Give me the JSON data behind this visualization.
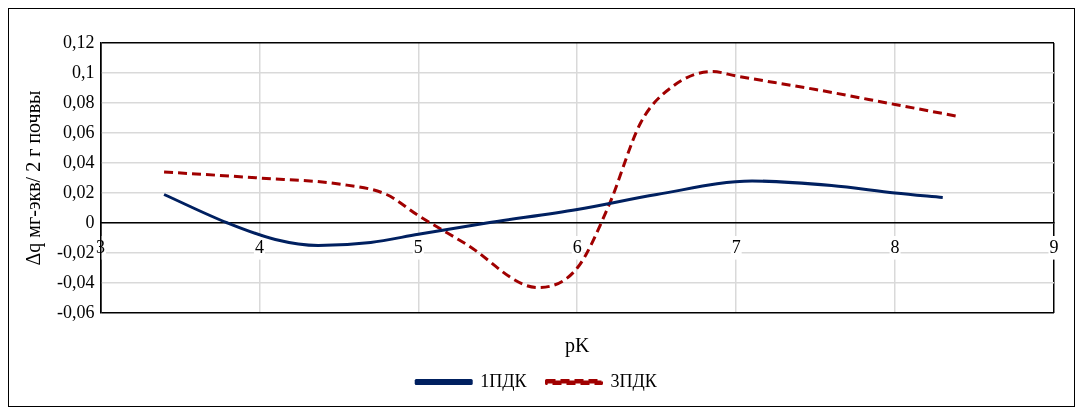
{
  "chart_data": {
    "type": "line",
    "xlabel": "pK",
    "ylabel": "Δq мг-экв/ 2 г почвы",
    "xlim": [
      3,
      9
    ],
    "xticks": [
      3,
      4,
      5,
      6,
      7,
      8,
      9
    ],
    "ylim": [
      -0.06,
      0.12
    ],
    "yticks": [
      {
        "value": 0.12,
        "label": "0,12"
      },
      {
        "value": 0.1,
        "label": "0,1"
      },
      {
        "value": 0.08,
        "label": "0,08"
      },
      {
        "value": 0.06,
        "label": "0,06"
      },
      {
        "value": 0.04,
        "label": "0,04"
      },
      {
        "value": 0.02,
        "label": "0,02"
      },
      {
        "value": 0,
        "label": "0"
      },
      {
        "value": -0.02,
        "label": "-0,02"
      },
      {
        "value": -0.04,
        "label": "-0,04"
      },
      {
        "value": -0.06,
        "label": "-0,06"
      }
    ],
    "grid": true,
    "legend": "bottom",
    "marker": "none",
    "series": [
      {
        "name": "1ПДК",
        "color": "#002060",
        "line_style": "solid",
        "x": [
          3.4,
          3.8,
          4.1,
          4.37,
          4.7,
          5.0,
          5.43,
          6.0,
          6.5,
          7.1,
          7.6,
          8.0,
          8.3
        ],
        "values": [
          0.019,
          0.0,
          -0.011,
          -0.015,
          -0.013,
          -0.0075,
          0.0,
          0.009,
          0.019,
          0.028,
          0.025,
          0.02,
          0.017
        ]
      },
      {
        "name": "3ПДК",
        "color": "#a00000",
        "line_style": "dashed",
        "x": [
          3.4,
          4.0,
          4.5,
          4.8,
          5.0,
          5.3,
          5.75,
          6.0,
          6.2,
          6.4,
          6.6,
          6.85,
          7.0,
          7.5,
          8.0,
          8.4
        ],
        "values": [
          0.034,
          0.03,
          0.026,
          0.019,
          0.005,
          -0.014,
          -0.043,
          -0.03,
          0.012,
          0.067,
          0.091,
          0.101,
          0.098,
          0.089,
          0.079,
          0.071
        ]
      }
    ]
  }
}
